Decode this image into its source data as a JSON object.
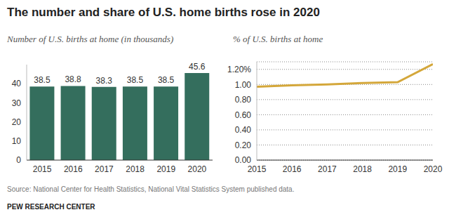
{
  "title": "The number and share of U.S. home births rose in 2020",
  "source": "Source: National Center for Health Statistics, National Vital Statistics System published data.",
  "footer": "PEW RESEARCH CENTER",
  "chart_data": [
    {
      "type": "bar",
      "title": "Number of U.S. births at home (in thousands)",
      "categories": [
        "2015",
        "2016",
        "2017",
        "2018",
        "2019",
        "2020"
      ],
      "values": [
        38.5,
        38.8,
        38.3,
        38.5,
        38.5,
        45.6
      ],
      "color": "#346e5d",
      "ylim": [
        0,
        50
      ],
      "yticks": [
        0,
        10,
        20,
        30,
        40
      ],
      "data_labels": true,
      "grid": false
    },
    {
      "type": "line",
      "title": "% of U.S. births at home",
      "x": [
        2015,
        2016,
        2017,
        2018,
        2019,
        2020
      ],
      "values": [
        0.97,
        0.99,
        1.0,
        1.02,
        1.03,
        1.27
      ],
      "color": "#d4a73a",
      "xlim": [
        2015,
        2020
      ],
      "xticks": [
        2015,
        2016,
        2017,
        2018,
        2019,
        2020
      ],
      "ylim": [
        0,
        1.3
      ],
      "yticks": [
        {
          "value": 0,
          "label": "0.00"
        },
        {
          "value": 0.2,
          "label": "0.20"
        },
        {
          "value": 0.4,
          "label": "0.40"
        },
        {
          "value": 0.6,
          "label": "0.60"
        },
        {
          "value": 0.8,
          "label": "0.80"
        },
        {
          "value": 1.0,
          "label": "1.00"
        },
        {
          "value": 1.2,
          "label": "1.20%"
        }
      ],
      "grid": true
    }
  ]
}
